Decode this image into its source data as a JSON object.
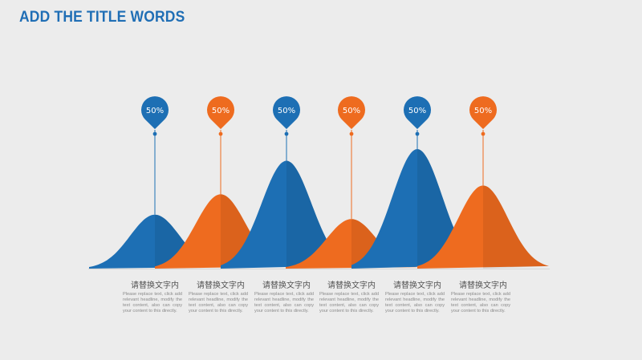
{
  "title": "ADD THE TITLE WORDS",
  "colors": {
    "blue": "#1d6fb4",
    "orange": "#ee6b1f",
    "background": "#ececec"
  },
  "chart_data": {
    "type": "area",
    "relative_peak_heights": [
      0.37,
      0.51,
      0.74,
      0.34,
      0.82,
      0.57
    ],
    "series": [
      {
        "label": "50%",
        "color": "#1d6fb4",
        "heading": "请替换文字内",
        "text": "Please replace text, click add relevant headline, modify the text content, also can copy your content to this directly."
      },
      {
        "label": "50%",
        "color": "#ee6b1f",
        "heading": "请替换文字内",
        "text": "Please replace text, click add relevant headline, modify the text content, also can copy your content to this directly."
      },
      {
        "label": "50%",
        "color": "#1d6fb4",
        "heading": "请替换文字内",
        "text": "Please replace text, click add relevant headline, modify the text content, also can copy your content to this directly."
      },
      {
        "label": "50%",
        "color": "#ee6b1f",
        "heading": "请替换文字内",
        "text": "Please replace text, click add relevant headline, modify the text content, also can copy your content to this directly."
      },
      {
        "label": "50%",
        "color": "#1d6fb4",
        "heading": "请替换文字内",
        "text": "Please replace text, click add relevant headline, modify the text content, also can copy your content to this directly."
      },
      {
        "label": "50%",
        "color": "#ee6b1f",
        "heading": "请替换文字内",
        "text": "Please replace text, click add relevant headline, modify the text content, also can copy your content to this directly."
      }
    ]
  }
}
